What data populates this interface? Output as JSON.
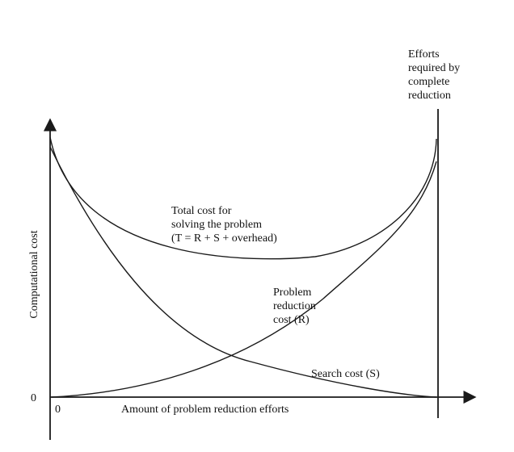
{
  "diagram": {
    "axes": {
      "y_label": "Computational cost",
      "x_label": "Amount of problem reduction efforts",
      "origin_y_label": "0",
      "origin_x_label": "0"
    },
    "boundary_label_lines": [
      "Efforts",
      "required by",
      "complete",
      "reduction"
    ],
    "total_cost_label_lines": [
      "Total cost for",
      "solving the problem",
      "(T = R + S + overhead)"
    ],
    "reduction_cost_label_lines": [
      "Problem",
      "reduction",
      "cost (R)"
    ],
    "search_cost_label": "Search cost (S)",
    "colors": {
      "ink": "#1a1a1a",
      "background": "#ffffff"
    }
  }
}
